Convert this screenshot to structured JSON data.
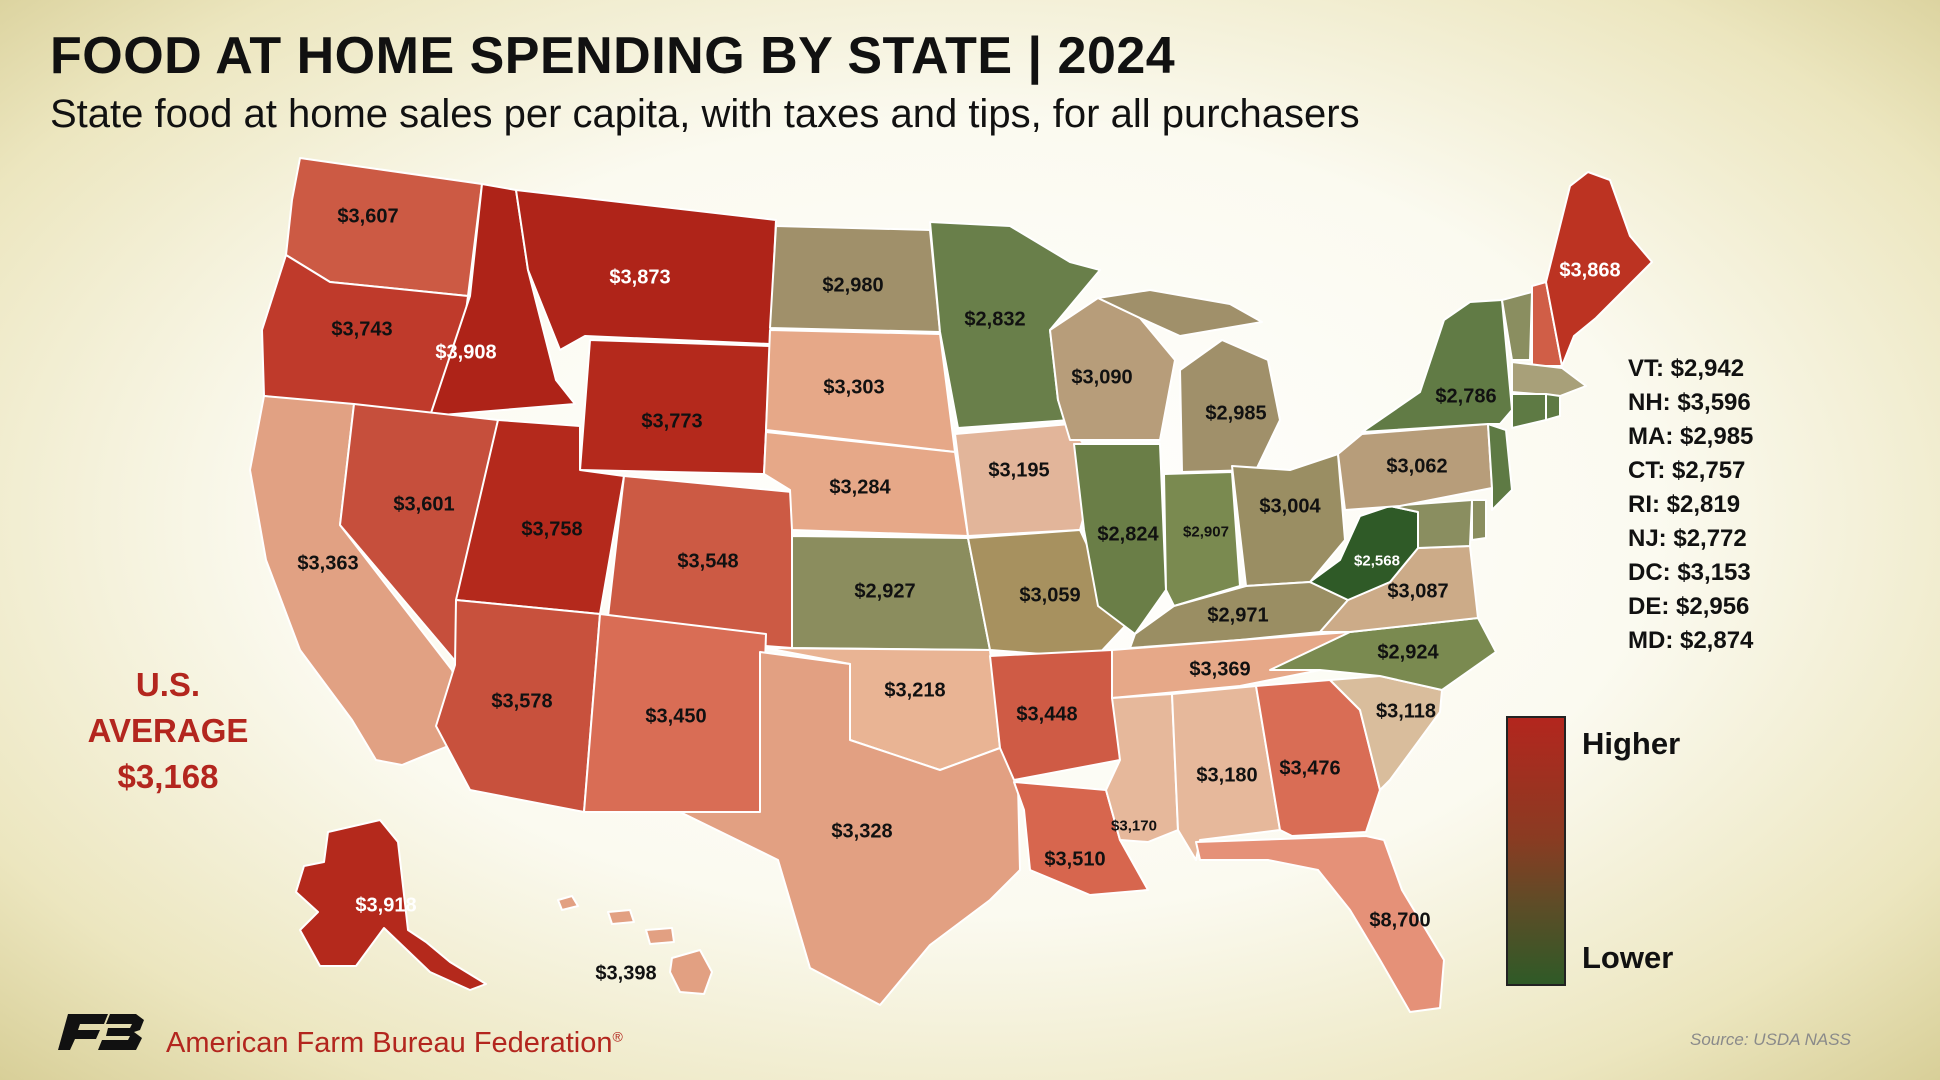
{
  "title": "FOOD AT HOME SPENDING BY STATE | 2024",
  "subtitle": "State food at home sales per capita, with taxes and tips, for all purchasers",
  "colors": {
    "higher": "#b3261e",
    "lower": "#2f5a27",
    "average_text": "#b3261e"
  },
  "states": [
    {
      "id": "wa",
      "value": "$3,607"
    },
    {
      "id": "or",
      "value": "$3,743"
    },
    {
      "id": "ca",
      "value": "$3,363"
    },
    {
      "id": "id",
      "value": "$3,908"
    },
    {
      "id": "nv",
      "value": "$3,601"
    },
    {
      "id": "mt",
      "value": "$3,873"
    },
    {
      "id": "wy",
      "value": "$3,773"
    },
    {
      "id": "ut",
      "value": "$3,758"
    },
    {
      "id": "co",
      "value": "$3,548"
    },
    {
      "id": "az",
      "value": "$3,578"
    },
    {
      "id": "nm",
      "value": "$3,450"
    },
    {
      "id": "nd",
      "value": "$2,980"
    },
    {
      "id": "sd",
      "value": "$3,303"
    },
    {
      "id": "ne",
      "value": "$3,284"
    },
    {
      "id": "ks",
      "value": "$2,927"
    },
    {
      "id": "ok",
      "value": "$3,218"
    },
    {
      "id": "tx",
      "value": "$3,328"
    },
    {
      "id": "mn",
      "value": "$2,832"
    },
    {
      "id": "ia",
      "value": "$3,195"
    },
    {
      "id": "mo",
      "value": "$3,059"
    },
    {
      "id": "ar",
      "value": "$3,448"
    },
    {
      "id": "la",
      "value": "$3,510"
    },
    {
      "id": "wi",
      "value": "$3,090"
    },
    {
      "id": "il",
      "value": "$2,824"
    },
    {
      "id": "mi",
      "value": "$2,985"
    },
    {
      "id": "in",
      "value": "$2,907"
    },
    {
      "id": "oh",
      "value": "$3,004"
    },
    {
      "id": "ky",
      "value": "$2,971"
    },
    {
      "id": "tn",
      "value": "$3,369"
    },
    {
      "id": "ms",
      "value": "$3,170"
    },
    {
      "id": "al",
      "value": "$3,180"
    },
    {
      "id": "ga",
      "value": "$3,476"
    },
    {
      "id": "fl",
      "value": "$8,700"
    },
    {
      "id": "sc",
      "value": "$3,118"
    },
    {
      "id": "nc",
      "value": "$2,924"
    },
    {
      "id": "va",
      "value": "$3,087"
    },
    {
      "id": "wv",
      "value": "$2,568"
    },
    {
      "id": "pa",
      "value": "$3,062"
    },
    {
      "id": "ny",
      "value": "$2,786"
    },
    {
      "id": "me",
      "value": "$3,868"
    },
    {
      "id": "ak",
      "value": "$3,918"
    },
    {
      "id": "hi",
      "value": "$3,398"
    }
  ],
  "small_states": [
    "VT: $2,942",
    "NH: $3,596",
    "MA: $2,985",
    "CT: $2,757",
    "RI: $2,819",
    "NJ: $2,772",
    "DC: $3,153",
    "DE: $2,956",
    "MD: $2,874"
  ],
  "us_average": {
    "line1": "U.S.",
    "line2": "AVERAGE",
    "value": "$3,168"
  },
  "legend": {
    "high": "Higher",
    "low": "Lower"
  },
  "source": "Source: USDA NASS",
  "org": "American Farm Bureau Federation",
  "org_mark": "®",
  "logo_icon": "farm-bureau-fb-logo-icon"
}
